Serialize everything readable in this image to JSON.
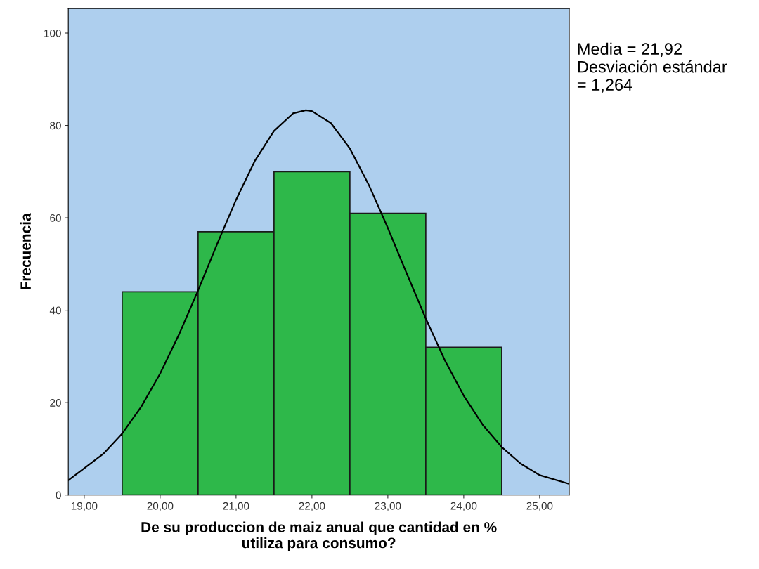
{
  "chart_data": {
    "type": "histogram",
    "xlabel": "De su produccion de maiz anual que cantidad en %\nutiliza para consumo?",
    "ylabel": "Frecuencia",
    "annotations": [
      "Media = 21,92\nDesviación estándar\n= 1,264"
    ],
    "series": [
      {
        "bins": [
          19.5,
          20.5,
          21.5,
          22.5,
          23.5,
          24.5
        ],
        "values": [
          44,
          57,
          70,
          61,
          32
        ],
        "color": "#2eb84a"
      },
      {
        "type": "line",
        "color": "#000000",
        "x": [
          18.79,
          19.0,
          19.25,
          19.5,
          19.75,
          20.0,
          20.25,
          20.5,
          20.75,
          21.0,
          21.25,
          21.5,
          21.75,
          21.92,
          22.0,
          22.25,
          22.5,
          22.75,
          23.0,
          23.25,
          23.5,
          23.75,
          24.0,
          24.25,
          24.5,
          24.75,
          25.0,
          25.39
        ],
        "values": [
          3.2,
          5.8,
          8.9,
          13.3,
          19.1,
          26.3,
          34.8,
          44.3,
          54.3,
          63.9,
          72.4,
          78.8,
          82.6,
          83.3,
          83.1,
          80.5,
          75.0,
          67.1,
          57.8,
          47.9,
          38.2,
          29.2,
          21.5,
          15.2,
          10.4,
          6.8,
          4.3,
          2.4
        ]
      }
    ],
    "xlim": [
      18.79,
      25.39
    ],
    "ylim": [
      0,
      105.3
    ],
    "xticks": [
      {
        "value": 19,
        "label": "19,00"
      },
      {
        "value": 20,
        "label": "20,00"
      },
      {
        "value": 21,
        "label": "21,00"
      },
      {
        "value": 22,
        "label": "22,00"
      },
      {
        "value": 23,
        "label": "23,00"
      },
      {
        "value": 24,
        "label": "24,00"
      },
      {
        "value": 25,
        "label": "25,00"
      }
    ],
    "yticks": [
      0,
      20,
      40,
      60,
      80,
      100
    ],
    "grid": false,
    "legend": false,
    "marker": "none",
    "line_style": "solid"
  }
}
